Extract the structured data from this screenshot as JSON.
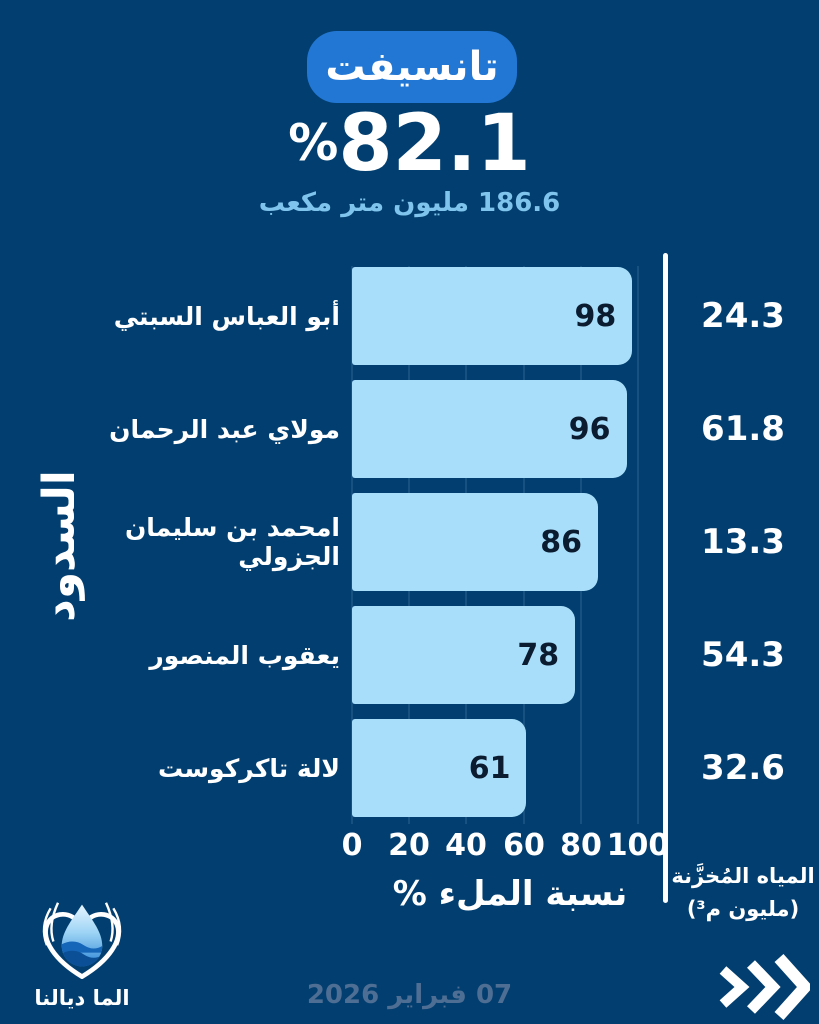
{
  "header": {
    "basin_badge": "تانسيفت",
    "percent_symbol": "%",
    "percent_value": "82.1",
    "volume_label": "186.6 مليون متر مكعب"
  },
  "chart_data": {
    "type": "bar",
    "orientation": "horizontal",
    "title": "تانسيفت",
    "overall_fill_percent": 82.1,
    "overall_volume_label": "186.6 مليون متر مكعب",
    "categories": [
      "أبو العباس السبتي",
      "مولاي عبد الرحمان",
      "امحمد بن سليمان الجزولي",
      "يعقوب المنصور",
      "لالة تاكركوست"
    ],
    "series": [
      {
        "name": "نسبة الملء %",
        "values": [
          98,
          96,
          86,
          78,
          61
        ]
      },
      {
        "name": "المياه المُخزَّنة (مليون م³)",
        "values": [
          24.3,
          61.8,
          13.3,
          54.3,
          32.6
        ]
      }
    ],
    "xlabel": "نسبة الملء %",
    "ylabel": "السدود",
    "xlim": [
      0,
      100
    ],
    "xticks": [
      0,
      20,
      40,
      60,
      80,
      100
    ],
    "grid": true,
    "legend": "none",
    "bar_color": "#a8defa"
  },
  "rows": [
    {
      "label": "أبو العباس السبتي",
      "value": 98,
      "stored": "24.3"
    },
    {
      "label": "مولاي عبد الرحمان",
      "value": 96,
      "stored": "61.8"
    },
    {
      "label": "امحمد بن سليمان الجزولي",
      "value": 86,
      "stored": "13.3"
    },
    {
      "label": "يعقوب المنصور",
      "value": 78,
      "stored": "54.3"
    },
    {
      "label": "لالة تاكركوست",
      "value": 61,
      "stored": "32.6"
    }
  ],
  "axis": {
    "ticks": [
      "0",
      "20",
      "40",
      "60",
      "80",
      "100"
    ],
    "xlabel": "نسبة الملء %",
    "ylabel": "السدود"
  },
  "right_column": {
    "title": "المياه المُخزَّنة",
    "unit": "(مليون م³)"
  },
  "footer": {
    "logo_caption": "الما ديالنا",
    "date": "07 فبراير 2026"
  },
  "colors": {
    "background": "#023f70",
    "badge": "#2277d4",
    "bar": "#a8defa",
    "volume_text": "#7fc4ec",
    "bar_value_text": "#0b1b30",
    "date_text": "#4f6e93",
    "gridline": "#175180",
    "separator": "#ffffff"
  }
}
